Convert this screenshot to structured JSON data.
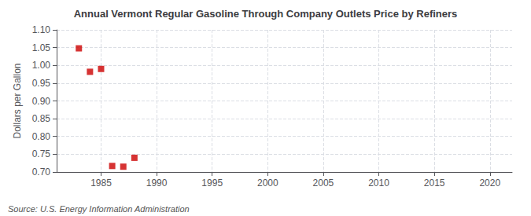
{
  "chart_data": {
    "type": "scatter",
    "title": "Annual Vermont Regular Gasoline Through Company Outlets Price by Refiners",
    "ylabel": "Dollars per Gallon",
    "annotations": [
      "Source: U.S. Energy Information Administration"
    ],
    "x": [
      1983,
      1984,
      1985,
      1986,
      1987,
      1988
    ],
    "values": [
      1.048,
      0.982,
      0.99,
      0.717,
      0.715,
      0.74
    ],
    "color": "#cc0000",
    "marker": "square",
    "xlim": [
      1981,
      2022
    ],
    "xticks": [
      1985,
      1990,
      1995,
      2000,
      2005,
      2010,
      2015,
      2020
    ],
    "ylim": [
      0.7,
      1.1
    ],
    "yticks": [
      {
        "value": 0.7,
        "label": "0.70"
      },
      0.75,
      {
        "value": 0.8,
        "label": "0.80"
      },
      0.85,
      {
        "value": 0.9,
        "label": "0.90"
      },
      0.95,
      {
        "value": 1.0,
        "label": "1.00"
      },
      1.05,
      {
        "value": 1.1,
        "label": "1.10"
      }
    ],
    "grid": true
  }
}
